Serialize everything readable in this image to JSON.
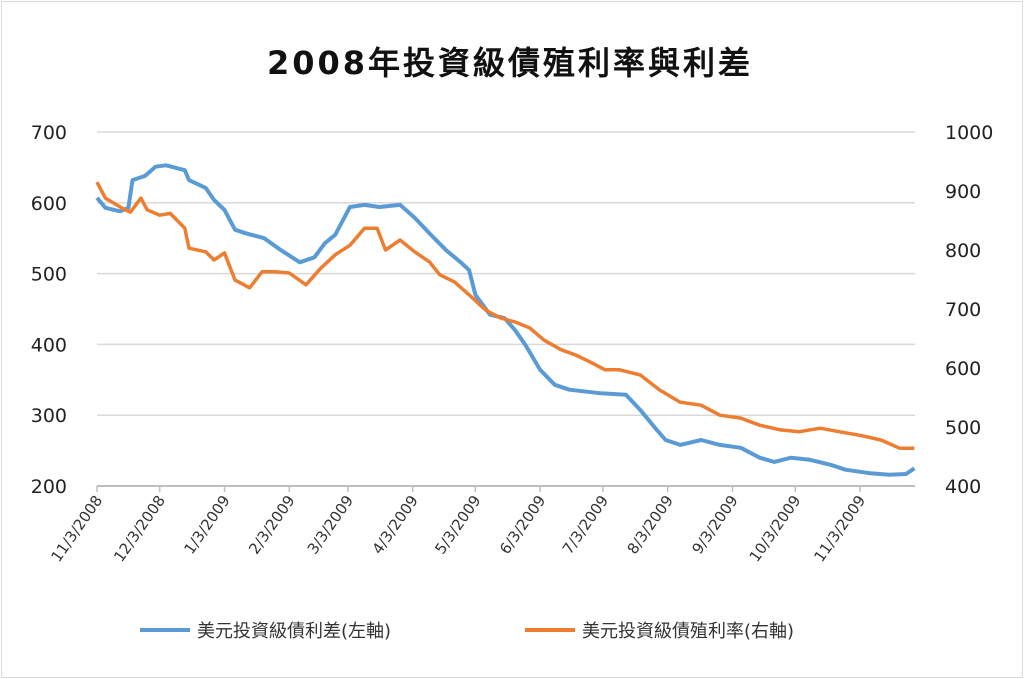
{
  "chart_data": {
    "type": "line",
    "title": "2008年投資級債殖利率與利差",
    "x_unit": "days since 11/3/2008",
    "x_range": [
      0,
      391
    ],
    "x_ticks": [
      {
        "day": 0,
        "label": "11/3/2008"
      },
      {
        "day": 30,
        "label": "12/3/2008"
      },
      {
        "day": 61,
        "label": "1/3/2009"
      },
      {
        "day": 92,
        "label": "2/3/2009"
      },
      {
        "day": 120,
        "label": "3/3/2009"
      },
      {
        "day": 151,
        "label": "4/3/2009"
      },
      {
        "day": 181,
        "label": "5/3/2009"
      },
      {
        "day": 212,
        "label": "6/3/2009"
      },
      {
        "day": 242,
        "label": "7/3/2009"
      },
      {
        "day": 273,
        "label": "8/3/2009"
      },
      {
        "day": 304,
        "label": "9/3/2009"
      },
      {
        "day": 334,
        "label": "10/3/2009"
      },
      {
        "day": 365,
        "label": "11/3/2009"
      }
    ],
    "y_left": {
      "range": [
        200,
        700
      ],
      "ticks": [
        "200",
        "300",
        "400",
        "500",
        "600",
        "700"
      ]
    },
    "y_right": {
      "range": [
        400,
        1000
      ],
      "ticks": [
        "400",
        "500",
        "600",
        "700",
        "800",
        "900",
        "1000"
      ]
    },
    "grid": true,
    "legend_position": "bottom",
    "series": [
      {
        "name": "美元投資級債利差(左軸)",
        "axis": "left",
        "color": "#5b9bd5",
        "x": [
          0,
          4,
          11,
          15,
          17,
          23,
          28,
          33,
          42,
          44,
          52,
          56,
          61,
          66,
          71,
          80,
          88,
          97,
          104,
          109,
          114,
          121,
          128,
          135,
          145,
          152,
          159,
          167,
          174,
          178,
          181,
          188,
          195,
          200,
          205,
          212,
          219,
          226,
          241,
          253,
          260,
          267,
          272,
          279,
          289,
          298,
          308,
          317,
          324,
          332,
          341,
          351,
          358,
          370,
          379,
          387,
          391
        ],
        "y": [
          607,
          593,
          588,
          593,
          632,
          638,
          651,
          653,
          646,
          632,
          621,
          604,
          590,
          562,
          557,
          550,
          533,
          516,
          523,
          543,
          555,
          594,
          597,
          594,
          597,
          579,
          557,
          533,
          516,
          505,
          470,
          442,
          437,
          420,
          399,
          364,
          343,
          336,
          331,
          329,
          307,
          282,
          265,
          258,
          265,
          258,
          254,
          240,
          234,
          240,
          237,
          230,
          223,
          218,
          216,
          217,
          225
        ]
      },
      {
        "name": "美元投資級債殖利率(右軸)",
        "axis": "right",
        "color": "#ed7d31",
        "x": [
          0,
          4,
          11,
          16,
          21,
          24,
          30,
          35,
          42,
          44,
          52,
          56,
          61,
          66,
          73,
          79,
          85,
          92,
          100,
          107,
          114,
          121,
          128,
          134,
          138,
          145,
          152,
          159,
          164,
          171,
          178,
          186,
          193,
          200,
          207,
          214,
          222,
          229,
          236,
          243,
          250,
          260,
          269,
          279,
          289,
          298,
          308,
          317,
          327,
          336,
          346,
          355,
          365,
          375,
          384,
          391
        ],
        "y": [
          915,
          888,
          873,
          864,
          888,
          868,
          859,
          862,
          837,
          803,
          797,
          783,
          795,
          749,
          736,
          763,
          763,
          761,
          741,
          769,
          792,
          808,
          837,
          837,
          800,
          817,
          797,
          780,
          758,
          746,
          724,
          698,
          685,
          678,
          668,
          647,
          631,
          622,
          610,
          597,
          597,
          588,
          563,
          542,
          537,
          520,
          515,
          503,
          495,
          492,
          498,
          492,
          486,
          478,
          464,
          464
        ]
      }
    ]
  }
}
